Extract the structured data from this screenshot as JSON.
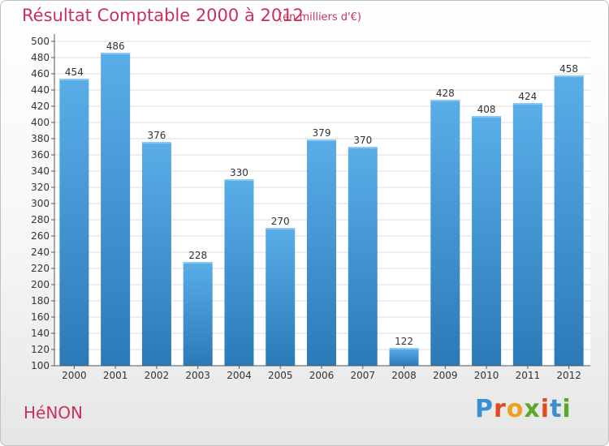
{
  "header": {
    "title": "Résultat Comptable 2000 à 2012",
    "subtitle": "(en milliers d'€)"
  },
  "footer": {
    "commune": "HéNON",
    "logo_letters": [
      "P",
      "r",
      "o",
      "x",
      "i",
      "t",
      "i"
    ],
    "logo_colors": [
      "#3a8fd0",
      "#e04a1f",
      "#f0a020",
      "#5aa82c",
      "#e04a1f",
      "#3a8fd0",
      "#5aa82c"
    ]
  },
  "chart_data": {
    "type": "bar",
    "categories": [
      "2000",
      "2001",
      "2002",
      "2003",
      "2004",
      "2005",
      "2006",
      "2007",
      "2008",
      "2009",
      "2010",
      "2011",
      "2012"
    ],
    "values": [
      454,
      486,
      376,
      228,
      330,
      270,
      379,
      370,
      122,
      428,
      408,
      424,
      458
    ],
    "data_labels": [
      "454",
      "486",
      "376",
      "228",
      "330",
      "270",
      "379",
      "370",
      "122",
      "428",
      "408",
      "424",
      "458"
    ],
    "yticks": [
      "100",
      "120",
      "140",
      "160",
      "180",
      "200",
      "220",
      "240",
      "260",
      "280",
      "300",
      "320",
      "340",
      "360",
      "380",
      "400",
      "420",
      "440",
      "460",
      "480",
      "500"
    ],
    "ylim": [
      100,
      500
    ],
    "grid": true,
    "bar_color_top": "#5aaee8",
    "bar_color_bottom": "#2a7ab8",
    "grid_color": "#dcdcdc"
  }
}
